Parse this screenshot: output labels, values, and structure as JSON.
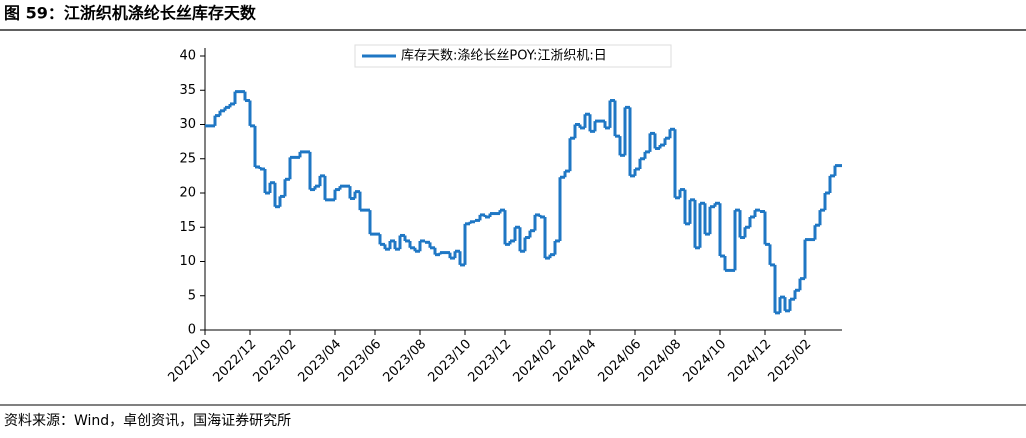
{
  "header": {
    "title": "图 59：江浙织机涤纶长丝库存天数"
  },
  "chart_data": {
    "type": "step",
    "series": [
      {
        "name": "库存天数:涤纶长丝POY:江浙织机:日",
        "color": "#1f77c4",
        "values": [
          29.8,
          29.8,
          31.3,
          32,
          32.5,
          33,
          34.8,
          34.8,
          33.5,
          29.8,
          23.8,
          23.5,
          20,
          21.5,
          18,
          19.5,
          22,
          25.2,
          25.2,
          26,
          26,
          20.5,
          21,
          22.5,
          19,
          19,
          20.5,
          21,
          21,
          19.2,
          20.2,
          17.5,
          17.5,
          14,
          14,
          12.5,
          11.8,
          13,
          11.8,
          13.8,
          13,
          12,
          11.5,
          13,
          12.8,
          12,
          11,
          11.3,
          11.3,
          10.5,
          11.5,
          9.5,
          15.5,
          15.8,
          16,
          16.8,
          16.5,
          17,
          17,
          17.5,
          12.5,
          13,
          15,
          11.5,
          13.5,
          14.5,
          16.8,
          16.5,
          10.5,
          11,
          13,
          22.3,
          23.2,
          28,
          30,
          29.5,
          31.5,
          29,
          30.5,
          30.5,
          29.5,
          33.5,
          28.3,
          25.5,
          32.5,
          22.5,
          23.5,
          25,
          26,
          28.7,
          26.5,
          27,
          28,
          29.3,
          19.3,
          20.5,
          15.5,
          19,
          12,
          18.5,
          14,
          18,
          18.5,
          10.8,
          8.7,
          8.7,
          17.5,
          13.5,
          15,
          16.5,
          17.5,
          17.3,
          12.5,
          9.5,
          2.5,
          4.8,
          2.8,
          4.5,
          5.8,
          7.5,
          13.2,
          13.2,
          15.3,
          17.5,
          20,
          22.5,
          24,
          24
        ]
      }
    ],
    "categories": [
      "2022/10",
      null,
      null,
      null,
      null,
      null,
      null,
      null,
      null,
      "2022/12",
      null,
      null,
      null,
      null,
      null,
      null,
      null,
      "2023/02",
      null,
      null,
      null,
      null,
      null,
      null,
      null,
      null,
      "2023/04",
      null,
      null,
      null,
      null,
      null,
      null,
      null,
      "2023/06",
      null,
      null,
      null,
      null,
      null,
      null,
      null,
      null,
      "2023/08",
      null,
      null,
      null,
      null,
      null,
      null,
      null,
      null,
      "2023/10",
      null,
      null,
      null,
      null,
      null,
      null,
      null,
      "2023/12",
      null,
      null,
      null,
      null,
      null,
      null,
      null,
      null,
      "2024/02",
      null,
      null,
      null,
      null,
      null,
      null,
      null,
      "2024/04",
      null,
      null,
      null,
      null,
      null,
      null,
      null,
      null,
      "2024/06",
      null,
      null,
      null,
      null,
      null,
      null,
      null,
      "2024/08",
      null,
      null,
      null,
      null,
      null,
      null,
      null,
      null,
      "2024/10",
      null,
      null,
      null,
      null,
      null,
      null,
      null,
      null,
      "2024/12",
      null,
      null,
      null,
      null,
      null,
      null,
      null,
      "2025/02",
      null,
      null,
      null,
      null,
      null,
      null,
      null
    ],
    "ylim": [
      0,
      40
    ],
    "yticks": [
      0,
      5,
      10,
      15,
      20,
      25,
      30,
      35,
      40
    ],
    "legend": "top",
    "grid": false
  },
  "footer": {
    "source": "资料来源：Wind，卓创资讯，国海证券研究所"
  }
}
